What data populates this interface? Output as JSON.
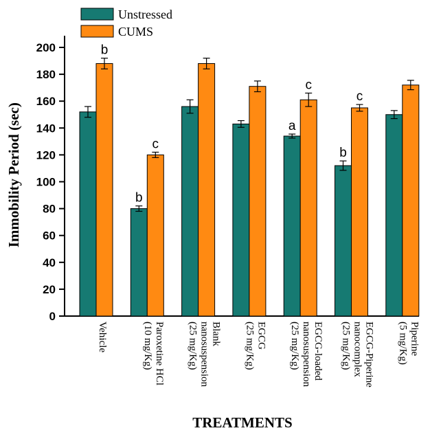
{
  "chart_data": {
    "type": "bar",
    "title": "",
    "xlabel": "TREATMENTS",
    "ylabel": "Immobility Period (sec)",
    "ylim": [
      0,
      210
    ],
    "yticks": [
      0,
      20,
      40,
      60,
      80,
      100,
      120,
      140,
      160,
      180,
      200
    ],
    "grid": false,
    "legend_position": "top-left",
    "categories": [
      [
        "Vehicle"
      ],
      [
        "Paroxetine HCl",
        "(10 mg/Kg)"
      ],
      [
        "Blank",
        "nanosuspension",
        "(25 mg/Kg)"
      ],
      [
        "EGCG",
        "(25 mg/Kg)"
      ],
      [
        "EGCG-loaded",
        "nanosuspension",
        "(25 mg/Kg)"
      ],
      [
        "EGCG-Piperine",
        "nanocomplex",
        "(25 mg/Kg)"
      ],
      [
        "Piperine",
        "(5 mg/Kg)"
      ]
    ],
    "series": [
      {
        "name": "Unstressed",
        "color": "#167a72",
        "values": [
          152,
          80,
          156,
          143,
          134,
          112,
          150
        ],
        "errors": [
          4,
          2,
          5,
          2.5,
          1.5,
          3.5,
          3
        ],
        "annotations": [
          "",
          "b",
          "",
          "",
          "a",
          "b",
          ""
        ]
      },
      {
        "name": "CUMS",
        "color": "#ff8a12",
        "values": [
          188,
          120,
          188,
          171,
          161,
          155,
          172
        ],
        "errors": [
          4,
          2,
          4,
          4,
          5,
          2.5,
          3.5
        ],
        "annotations": [
          "b",
          "c",
          "",
          "",
          "c",
          "c",
          ""
        ]
      }
    ]
  }
}
